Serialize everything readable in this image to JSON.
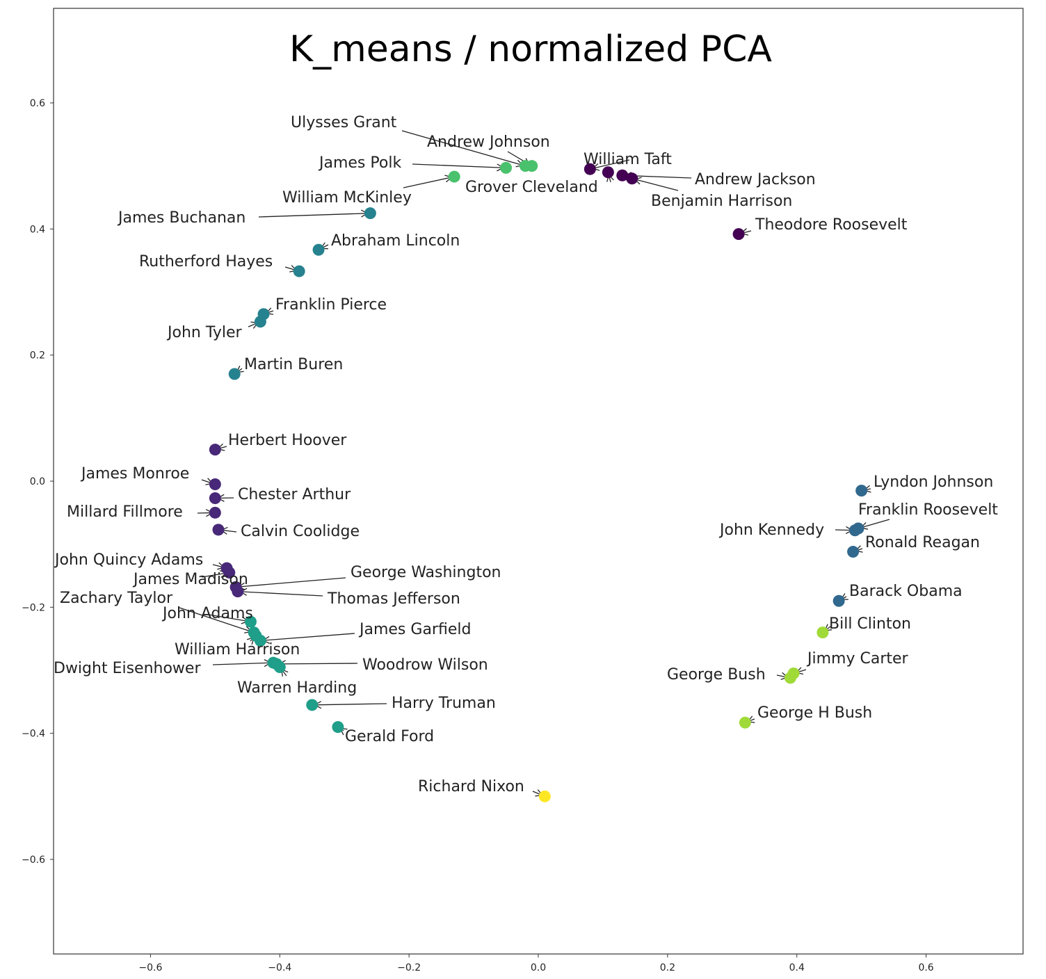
{
  "chart_data": {
    "type": "scatter",
    "title": "K_means / normalized PCA",
    "xlabel": "",
    "ylabel": "",
    "xlim": [
      -0.75,
      0.75
    ],
    "ylim": [
      -0.75,
      0.75
    ],
    "xticks": [
      -0.6,
      -0.4,
      -0.2,
      0.0,
      0.2,
      0.4,
      0.6
    ],
    "yticks": [
      -0.6,
      -0.4,
      -0.2,
      0.0,
      0.2,
      0.4,
      0.6
    ],
    "xtick_labels": [
      "−0.6",
      "−0.4",
      "−0.2",
      "0.0",
      "0.2",
      "0.4",
      "0.6"
    ],
    "ytick_labels": [
      "−0.6",
      "−0.4",
      "−0.2",
      "0.0",
      "0.2",
      "0.4",
      "0.6"
    ],
    "grid": false,
    "cluster_colors": {
      "c0": "#440154",
      "c1": "#482878",
      "c2": "#31688e",
      "c3": "#26828e",
      "c4": "#1f9e89",
      "c5": "#35b779",
      "c6": "#4ac16d",
      "c7": "#a0da39",
      "c8": "#fde725"
    },
    "points": [
      {
        "name": "Ulysses Grant",
        "x": -0.02,
        "y": 0.5,
        "cluster": "c6"
      },
      {
        "name": "Andrew Johnson",
        "x": -0.01,
        "y": 0.5,
        "cluster": "c6"
      },
      {
        "name": "James Polk",
        "x": -0.05,
        "y": 0.497,
        "cluster": "c6"
      },
      {
        "name": "Grover Cleveland",
        "x": 0.108,
        "y": 0.49,
        "cluster": "c0"
      },
      {
        "name": "William McKinley",
        "x": -0.13,
        "y": 0.483,
        "cluster": "c6"
      },
      {
        "name": "William Taft",
        "x": 0.08,
        "y": 0.495,
        "cluster": "c0"
      },
      {
        "name": "Andrew Jackson",
        "x": 0.13,
        "y": 0.485,
        "cluster": "c0"
      },
      {
        "name": "Benjamin Harrison",
        "x": 0.145,
        "y": 0.48,
        "cluster": "c0"
      },
      {
        "name": "Theodore Roosevelt",
        "x": 0.31,
        "y": 0.392,
        "cluster": "c0"
      },
      {
        "name": "James Buchanan",
        "x": -0.26,
        "y": 0.425,
        "cluster": "c3"
      },
      {
        "name": "Abraham Lincoln",
        "x": -0.34,
        "y": 0.367,
        "cluster": "c3"
      },
      {
        "name": "Rutherford Hayes",
        "x": -0.37,
        "y": 0.333,
        "cluster": "c3"
      },
      {
        "name": "Franklin Pierce",
        "x": -0.425,
        "y": 0.265,
        "cluster": "c3"
      },
      {
        "name": "John Tyler",
        "x": -0.43,
        "y": 0.253,
        "cluster": "c3"
      },
      {
        "name": "Martin Buren",
        "x": -0.47,
        "y": 0.17,
        "cluster": "c3"
      },
      {
        "name": "Herbert Hoover",
        "x": -0.5,
        "y": 0.05,
        "cluster": "c1"
      },
      {
        "name": "James Monroe",
        "x": -0.5,
        "y": -0.005,
        "cluster": "c1"
      },
      {
        "name": "Chester Arthur",
        "x": -0.5,
        "y": -0.027,
        "cluster": "c1"
      },
      {
        "name": "Millard Fillmore",
        "x": -0.5,
        "y": -0.05,
        "cluster": "c1"
      },
      {
        "name": "Calvin Coolidge",
        "x": -0.495,
        "y": -0.077,
        "cluster": "c1"
      },
      {
        "name": "John Quincy Adams",
        "x": -0.482,
        "y": -0.138,
        "cluster": "c1"
      },
      {
        "name": "James Madison",
        "x": -0.478,
        "y": -0.145,
        "cluster": "c1"
      },
      {
        "name": "George Washington",
        "x": -0.468,
        "y": -0.168,
        "cluster": "c1"
      },
      {
        "name": "Thomas Jefferson",
        "x": -0.465,
        "y": -0.175,
        "cluster": "c1"
      },
      {
        "name": "Zachary Taylor",
        "x": -0.44,
        "y": -0.24,
        "cluster": "c4"
      },
      {
        "name": "John Adams",
        "x": -0.445,
        "y": -0.223,
        "cluster": "c4"
      },
      {
        "name": "James Garfield",
        "x": -0.43,
        "y": -0.253,
        "cluster": "c4"
      },
      {
        "name": "William Harrison",
        "x": -0.437,
        "y": -0.245,
        "cluster": "c4"
      },
      {
        "name": "Dwight Eisenhower",
        "x": -0.41,
        "y": -0.288,
        "cluster": "c4"
      },
      {
        "name": "Woodrow Wilson",
        "x": -0.405,
        "y": -0.29,
        "cluster": "c4"
      },
      {
        "name": "Warren Harding",
        "x": -0.4,
        "y": -0.295,
        "cluster": "c4"
      },
      {
        "name": "Harry Truman",
        "x": -0.35,
        "y": -0.355,
        "cluster": "c4"
      },
      {
        "name": "Gerald Ford",
        "x": -0.31,
        "y": -0.39,
        "cluster": "c4"
      },
      {
        "name": "Richard Nixon",
        "x": 0.01,
        "y": -0.5,
        "cluster": "c8"
      },
      {
        "name": "Lyndon Johnson",
        "x": 0.5,
        "y": -0.015,
        "cluster": "c2"
      },
      {
        "name": "Franklin Roosevelt",
        "x": 0.495,
        "y": -0.075,
        "cluster": "c2"
      },
      {
        "name": "John Kennedy",
        "x": 0.49,
        "y": -0.078,
        "cluster": "c2"
      },
      {
        "name": "Ronald Reagan",
        "x": 0.487,
        "y": -0.112,
        "cluster": "c2"
      },
      {
        "name": "Barack Obama",
        "x": 0.465,
        "y": -0.19,
        "cluster": "c2"
      },
      {
        "name": "Bill Clinton",
        "x": 0.44,
        "y": -0.24,
        "cluster": "c7"
      },
      {
        "name": "Jimmy Carter",
        "x": 0.395,
        "y": -0.305,
        "cluster": "c7"
      },
      {
        "name": "George Bush",
        "x": 0.39,
        "y": -0.312,
        "cluster": "c7"
      },
      {
        "name": "George H Bush",
        "x": 0.32,
        "y": -0.383,
        "cluster": "c7"
      }
    ]
  }
}
